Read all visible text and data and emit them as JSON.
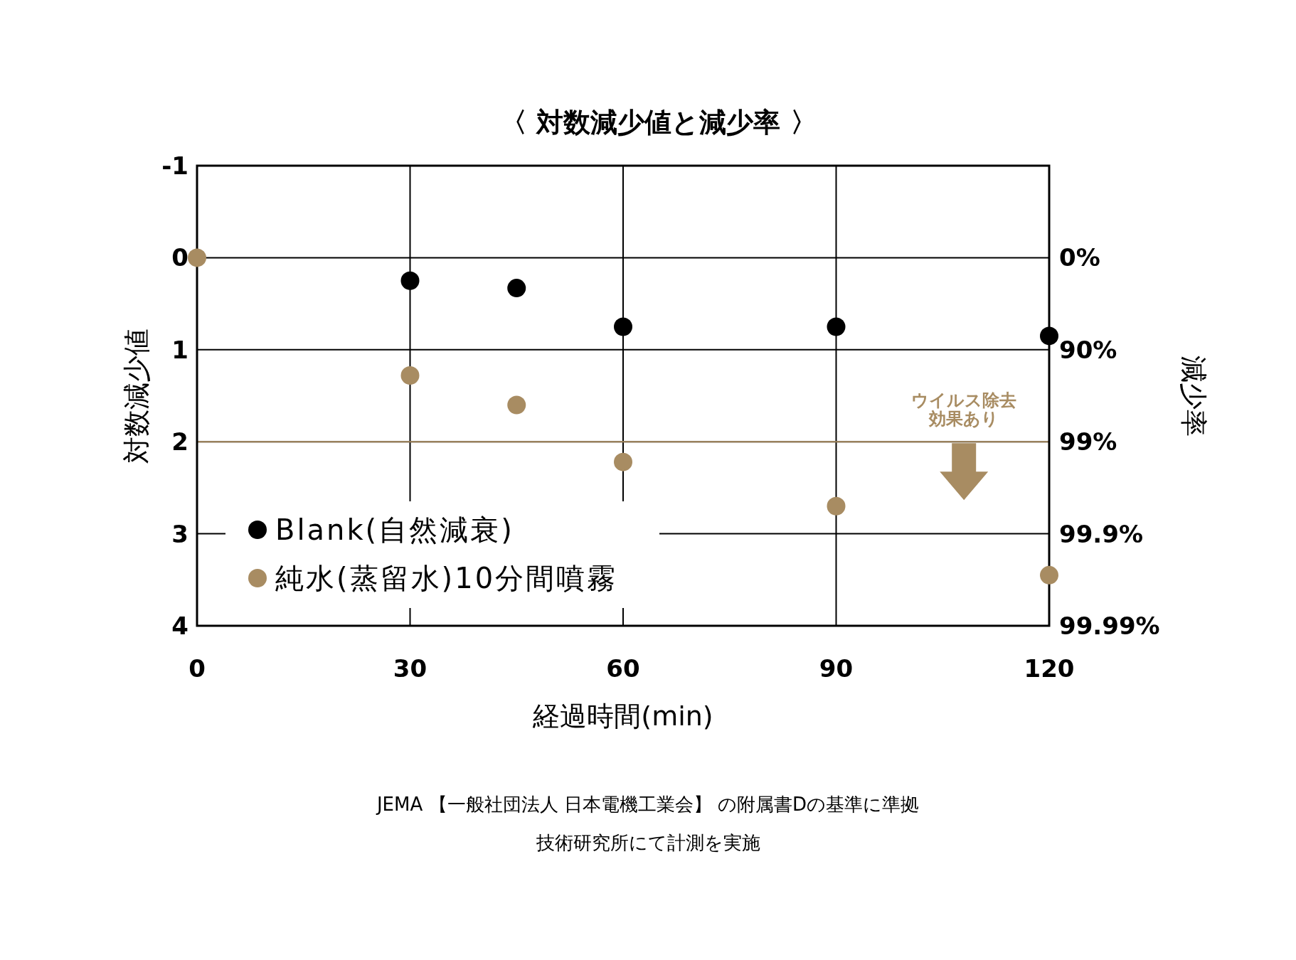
{
  "chart_data": {
    "type": "scatter",
    "title": "〈 対数減少値と減少率 〉",
    "xlabel": "経過時間(min)",
    "ylabel": "対数減少値",
    "y2label": "減少率",
    "xlim": [
      0,
      120
    ],
    "xticks": [
      0,
      30,
      60,
      90,
      120
    ],
    "ylim": [
      4,
      -1
    ],
    "yticks": [
      -1,
      0,
      1,
      2,
      3,
      4
    ],
    "grid": true,
    "legend": "bottom left",
    "marker": "circle",
    "series": [
      {
        "name": "Blank(自然減衰)",
        "color": "#000000",
        "x": [
          30,
          45,
          60,
          90,
          120
        ],
        "values": [
          0.25,
          0.33,
          0.75,
          0.75,
          0.85
        ]
      },
      {
        "name": "純水(蒸留水)10分間噴霧",
        "color": "#a88c62",
        "x": [
          0,
          30,
          45,
          60,
          90,
          120
        ],
        "values": [
          0,
          1.28,
          1.6,
          2.22,
          2.7,
          3.45
        ]
      }
    ],
    "ref_lines": [
      {
        "axis": "y",
        "value": 2,
        "color": "#a88c62"
      }
    ],
    "annotations": [
      {
        "text": "ウイルス除去効果あり",
        "x": 108,
        "y": 2
      },
      "0%",
      "90%",
      "99%",
      "99.9%",
      "99.99%",
      "JEMA 【一般社団法人 日本電機工業会】 の附属書Dの基準に準拠",
      "技術研究所にて計測を実施"
    ]
  }
}
